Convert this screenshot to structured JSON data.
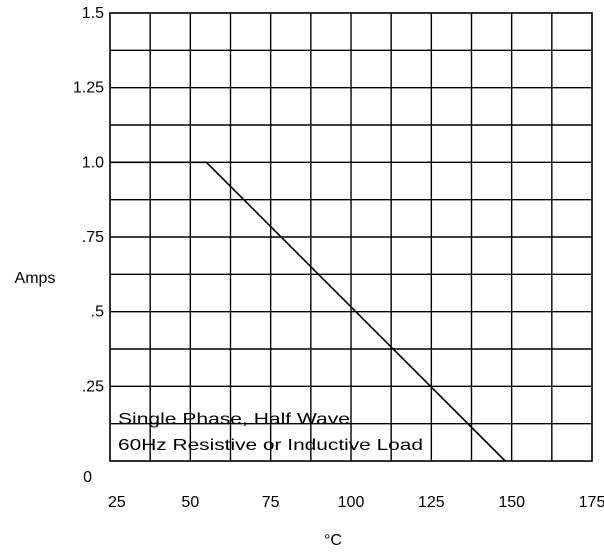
{
  "chart_data": {
    "type": "line",
    "xlabel": "°C",
    "ylabel": "Amps",
    "xlim": [
      25,
      175
    ],
    "ylim": [
      0,
      1.5
    ],
    "x_ticks": [
      {
        "value": 25,
        "label": "25"
      },
      {
        "value": 50,
        "label": "50"
      },
      {
        "value": 75,
        "label": "75"
      },
      {
        "value": 100,
        "label": "100"
      },
      {
        "value": 125,
        "label": "125"
      },
      {
        "value": 150,
        "label": "150"
      },
      {
        "value": 175,
        "label": "175"
      }
    ],
    "y_ticks": [
      {
        "value": 0,
        "label": "0"
      },
      {
        "value": 0.25,
        "label": ".25"
      },
      {
        "value": 0.5,
        "label": ".5"
      },
      {
        "value": 0.75,
        "label": ".75"
      },
      {
        "value": 1.0,
        "label": "1.0"
      },
      {
        "value": 1.25,
        "label": "1.25"
      },
      {
        "value": 1.5,
        "label": "1.5"
      }
    ],
    "grid": true,
    "series": [
      {
        "x": [
          25,
          55,
          148
        ],
        "y": [
          1.0,
          1.0,
          0.0
        ],
        "color": "#000000"
      }
    ],
    "annotations": [
      "Single Phase, Half Wave",
      "60Hz Resistive or Inductive Load"
    ]
  }
}
